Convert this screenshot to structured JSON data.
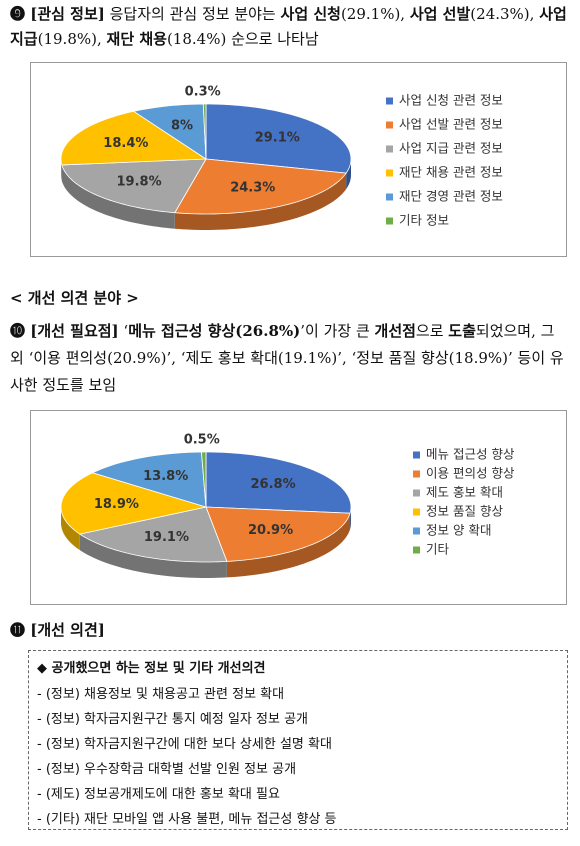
{
  "section9": {
    "text": [
      "❾ ",
      "[관심 정보]",
      " 응답자의 관심 정보 분야는 ",
      "사업 신청",
      "(29.1%), ",
      "사업 선발",
      "(24.3%), ",
      "사업 지급",
      "(19.8%), ",
      "재단 채용",
      "(18.4%) 순으로 나타남"
    ]
  },
  "chart_data": [
    {
      "type": "pie",
      "categories": [
        "사업 신청 관련 정보",
        "사업 선발 관련 정보",
        "사업 지급 관련 정보",
        "재단 채용 관련 정보",
        "재단 경영 관련 정보",
        "기타 정보"
      ],
      "values": [
        29.1,
        24.3,
        19.8,
        18.4,
        8,
        0.3
      ],
      "value_labels": [
        "29.1%",
        "24.3%",
        "19.8%",
        "18.4%",
        "8%",
        "0.3%"
      ],
      "colors": [
        "#4472c4",
        "#ed7d31",
        "#a5a5a5",
        "#ffc000",
        "#5b9bd5",
        "#70ad47"
      ],
      "legend": "right"
    },
    {
      "type": "pie",
      "categories": [
        "메뉴 접근성 향상",
        "이용 편의성 향상",
        "제도 홍보 확대",
        "정보 품질 향상",
        "정보 양 확대",
        "기타"
      ],
      "values": [
        26.8,
        20.9,
        19.1,
        18.9,
        13.8,
        0.5
      ],
      "value_labels": [
        "26.8%",
        "20.9%",
        "19.1%",
        "18.9%",
        "13.8%",
        "0.5%"
      ],
      "colors": [
        "#4472c4",
        "#ed7d31",
        "#a5a5a5",
        "#ffc000",
        "#5b9bd5",
        "#70ad47"
      ],
      "legend": "right"
    }
  ],
  "section_heading": "< 개선 의견 분야 >",
  "section10": {
    "text": [
      "❿ ",
      "[개선 필요점]",
      " ‘",
      "메뉴 접근성 향상(26.8%)",
      "’이 가장 큰 ",
      "개선점",
      "으로 ",
      "도출",
      "되었으며, 그 외 ‘이용 편의성(20.9%)’, ‘제도 홍보 확대(19.1%)’, ‘정보 품질 향상(18.9%)’ 등이 유사한 정도를 보임"
    ]
  },
  "section11": {
    "heading": "⓫ [개선 의견]",
    "box_title": "◆ 공개했으면 하는 정보 및 기타 개선의견",
    "items": [
      "- (정보) 채용정보 및 채용공고 관련 정보 확대",
      "- (정보) 학자금지원구간 통지 예정 일자 정보 공개",
      "- (정보) 학자금지원구간에 대한 보다 상세한 설명 확대",
      "- (정보) 우수장학금 대학별 선발 인원 정보 공개",
      "- (제도) 정보공개제도에 대한 홍보 확대 필요",
      "- (기타) 재단 모바일 앱 사용 불편, 메뉴 접근성 향상 등"
    ]
  }
}
